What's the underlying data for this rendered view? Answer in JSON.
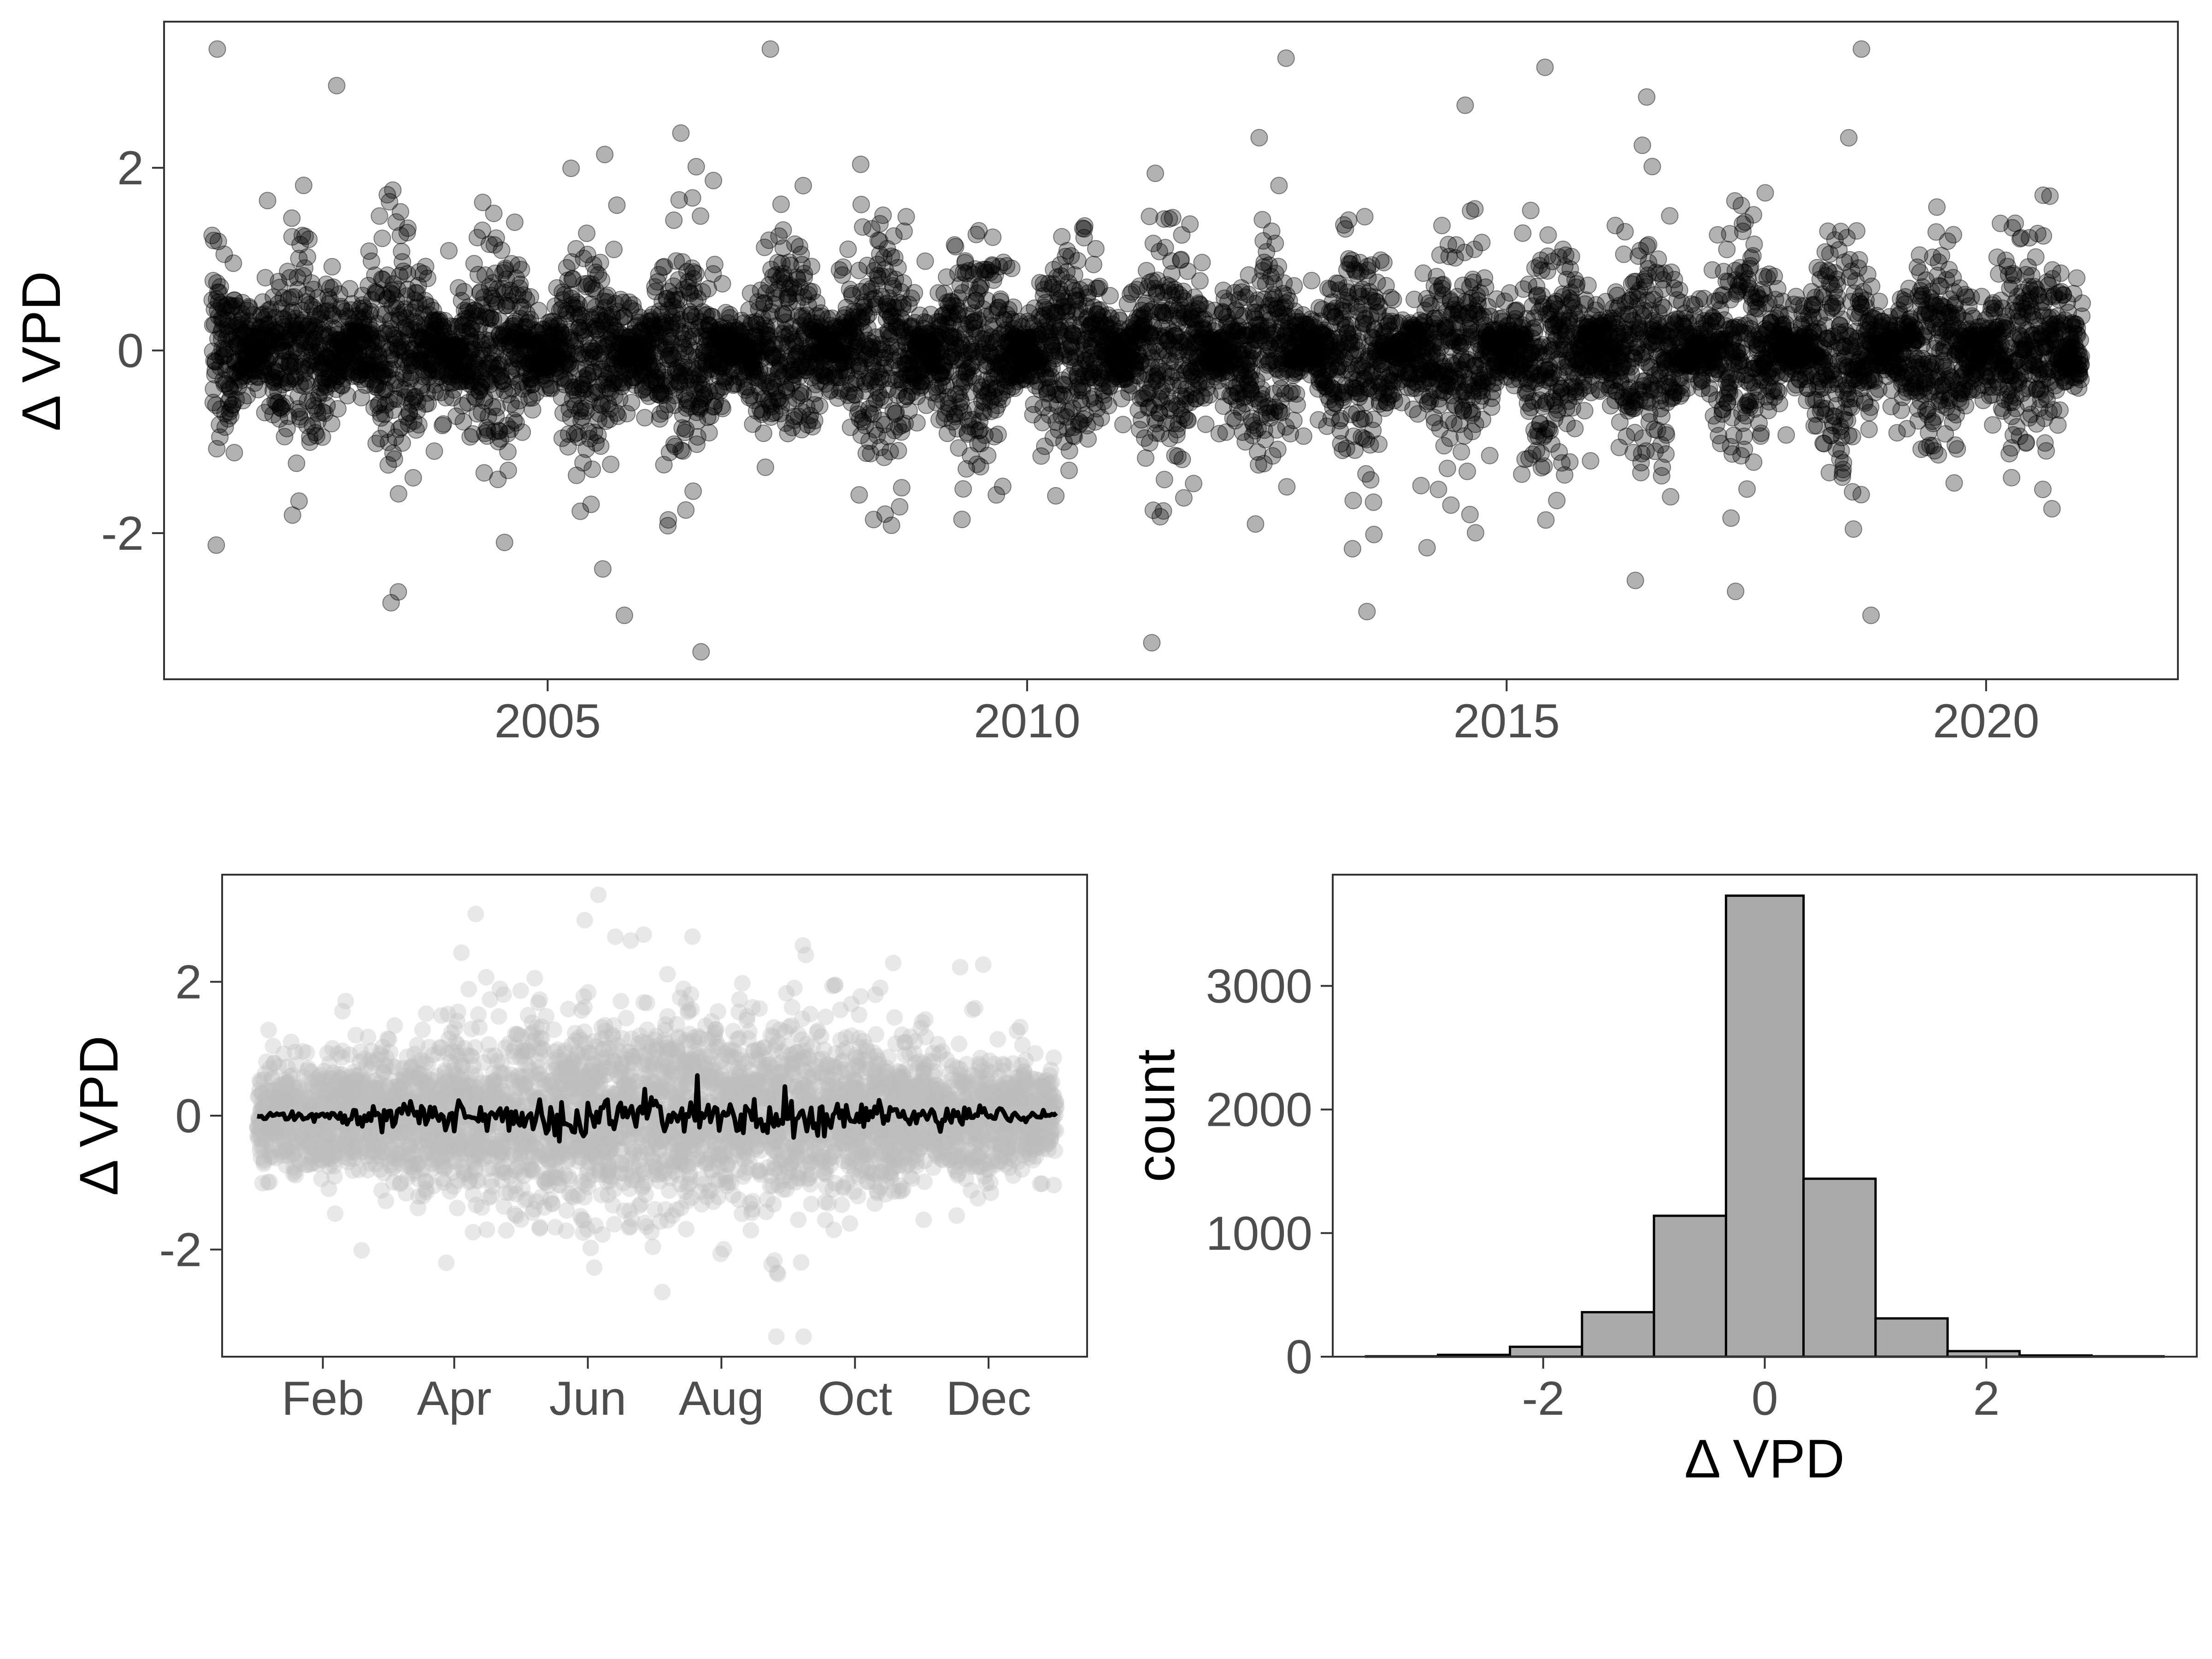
{
  "figure": {
    "background": "#ffffff",
    "panel_border_color": "#333333",
    "tick_label_color": "#4d4d4d"
  },
  "chart_data": [
    {
      "id": "timeseries",
      "type": "scatter",
      "title": "",
      "xlabel": "",
      "ylabel": "Δ VPD",
      "xlim": [
        2001.0,
        2022.0
      ],
      "ylim": [
        -3.6,
        3.6
      ],
      "x_ticks": [
        2005,
        2010,
        2015,
        2020
      ],
      "x_tick_labels": [
        "2005",
        "2010",
        "2015",
        "2020"
      ],
      "y_ticks": [
        -2,
        0,
        2
      ],
      "y_tick_labels": [
        "-2",
        "0",
        "2"
      ],
      "grid": false,
      "point_color": "#000000",
      "point_alpha": 0.3,
      "x_range_of_data": [
        2001.5,
        2021.0
      ],
      "n_points_approx": 7100,
      "noted_extremes": [
        {
          "x": 2012.7,
          "y": 3.2
        },
        {
          "x": 2018.7,
          "y": 3.3
        },
        {
          "x": 2015.4,
          "y": 3.1
        },
        {
          "x": 2002.8,
          "y": 2.9
        },
        {
          "x": 2006.6,
          "y": -3.3
        },
        {
          "x": 2011.3,
          "y": -3.2
        },
        {
          "x": 2005.8,
          "y": -2.9
        },
        {
          "x": 2018.8,
          "y": -2.9
        }
      ]
    },
    {
      "id": "seasonal",
      "type": "scatter",
      "title": "",
      "xlabel": "",
      "ylabel": "Δ VPD",
      "xlim": [
        -15,
        380
      ],
      "ylim": [
        -3.6,
        3.6
      ],
      "x_ticks": [
        31,
        91,
        152,
        213,
        274,
        335
      ],
      "x_tick_labels": [
        "Feb",
        "Apr",
        "Jun",
        "Aug",
        "Oct",
        "Dec"
      ],
      "y_ticks": [
        -2,
        0,
        2
      ],
      "y_tick_labels": [
        "-2",
        "0",
        "2"
      ],
      "grid": false,
      "point_color": "#bdbdbd",
      "point_alpha": 0.35,
      "line_color": "#000000",
      "line_description": "daily mean Δ VPD by day of year",
      "x_range_of_data": [
        1,
        366
      ],
      "line_range": [
        -0.5,
        0.6
      ]
    },
    {
      "id": "histogram",
      "type": "bar",
      "title": "",
      "xlabel": "Δ VPD",
      "ylabel": "count",
      "xlim": [
        -3.9,
        3.9
      ],
      "ylim": [
        0,
        3900
      ],
      "x_ticks": [
        -2,
        0,
        2
      ],
      "x_tick_labels": [
        "-2",
        "0",
        "2"
      ],
      "y_ticks": [
        0,
        1000,
        2000,
        3000
      ],
      "y_tick_labels": [
        "0",
        "1000",
        "2000",
        "3000"
      ],
      "grid": false,
      "bar_fill": "#aaaaaa",
      "bar_edge": "#000000",
      "bin_edges": [
        -3.6,
        -2.95,
        -2.3,
        -1.65,
        -1.0,
        -0.35,
        0.35,
        1.0,
        1.65,
        2.3,
        2.95,
        3.6
      ],
      "counts": [
        3,
        15,
        80,
        360,
        1140,
        3730,
        1440,
        310,
        45,
        10,
        3
      ]
    }
  ]
}
